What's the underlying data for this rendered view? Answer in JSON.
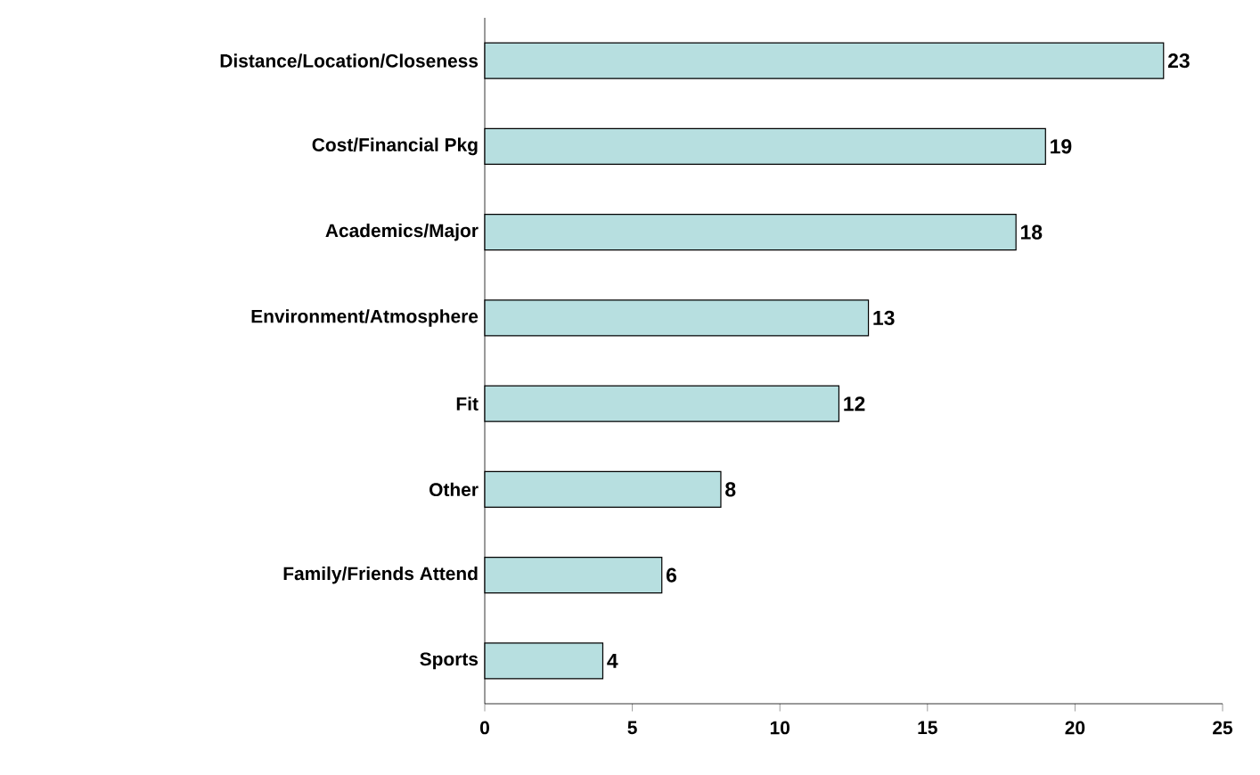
{
  "chart_data": {
    "type": "bar",
    "orientation": "horizontal",
    "categories": [
      "Distance/Location/Closeness",
      "Cost/Financial Pkg",
      "Academics/Major",
      "Environment/Atmosphere",
      "Fit",
      "Other",
      "Family/Friends Attend",
      "Sports"
    ],
    "values": [
      23,
      19,
      18,
      13,
      12,
      8,
      6,
      4
    ],
    "color": "#b7dfe0",
    "xlim": [
      0,
      25
    ],
    "xticks": [
      0,
      5,
      10,
      15,
      20,
      25
    ],
    "grid": false,
    "data_labels": true
  }
}
